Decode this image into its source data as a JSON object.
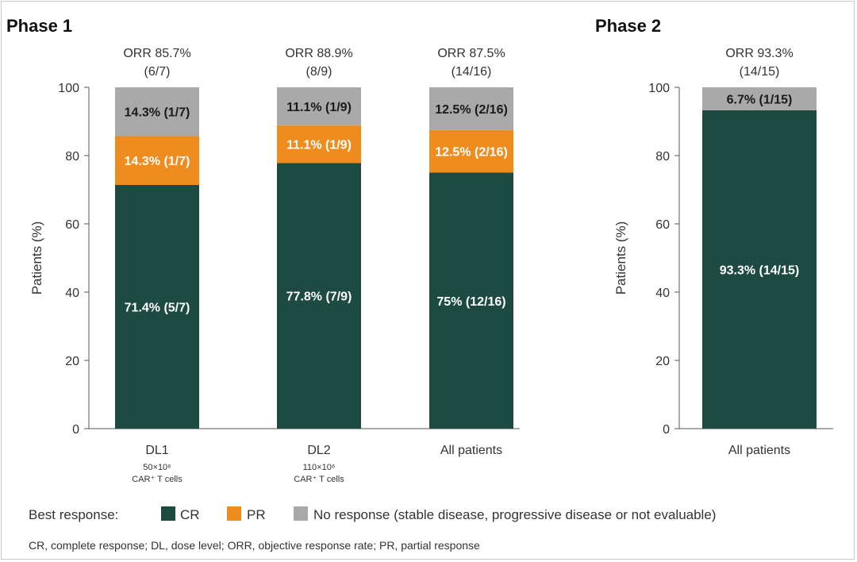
{
  "colors": {
    "CR": "#1d4a41",
    "PR": "#ee8c1f",
    "NR": "#a9a9a9"
  },
  "chart_data": [
    {
      "type": "bar",
      "stacked": true,
      "title": "Phase 1",
      "ylabel": "Patients (%)",
      "ylim": [
        0,
        100
      ],
      "yticks": [
        "0",
        "20",
        "40",
        "60",
        "80",
        "100"
      ],
      "categories": [
        {
          "label": "DL1",
          "sublabel_1": "50×10⁶",
          "sublabel_2": "CAR⁺ T cells",
          "orr_1": "ORR 85.7%",
          "orr_2": "(6/7)"
        },
        {
          "label": "DL2",
          "sublabel_1": "110×10⁶",
          "sublabel_2": "CAR⁺ T cells",
          "orr_1": "ORR 88.9%",
          "orr_2": "(8/9)"
        },
        {
          "label": "All patients",
          "sublabel_1": "",
          "sublabel_2": "",
          "orr_1": "ORR 87.5%",
          "orr_2": "(14/16)"
        }
      ],
      "series": [
        {
          "name": "CR",
          "values": [
            71.4,
            77.8,
            75.0
          ],
          "labels": [
            "71.4% (5/7)",
            "77.8% (7/9)",
            "75% (12/16)"
          ]
        },
        {
          "name": "PR",
          "values": [
            14.3,
            11.1,
            12.5
          ],
          "labels": [
            "14.3% (1/7)",
            "11.1% (1/9)",
            "12.5% (2/16)"
          ]
        },
        {
          "name": "No response",
          "values": [
            14.3,
            11.1,
            12.5
          ],
          "labels": [
            "14.3% (1/7)",
            "11.1% (1/9)",
            "12.5% (2/16)"
          ]
        }
      ]
    },
    {
      "type": "bar",
      "stacked": true,
      "title": "Phase 2",
      "ylabel": "Patients (%)",
      "ylim": [
        0,
        100
      ],
      "yticks": [
        "0",
        "20",
        "40",
        "60",
        "80",
        "100"
      ],
      "categories": [
        {
          "label": "All patients",
          "sublabel_1": "",
          "sublabel_2": "",
          "orr_1": "ORR 93.3%",
          "orr_2": "(14/15)"
        }
      ],
      "series": [
        {
          "name": "CR",
          "values": [
            93.3
          ],
          "labels": [
            "93.3% (14/15)"
          ]
        },
        {
          "name": "PR",
          "values": [
            0
          ],
          "labels": [
            ""
          ]
        },
        {
          "name": "No response",
          "values": [
            6.7
          ],
          "labels": [
            "6.7% (1/15)"
          ]
        }
      ]
    }
  ],
  "legend": {
    "title": "Best response:",
    "items": [
      "CR",
      "PR",
      "No response (stable disease, progressive disease or not evaluable)"
    ]
  },
  "footnote": "CR, complete response; DL, dose level; ORR, objective response rate; PR, partial response"
}
